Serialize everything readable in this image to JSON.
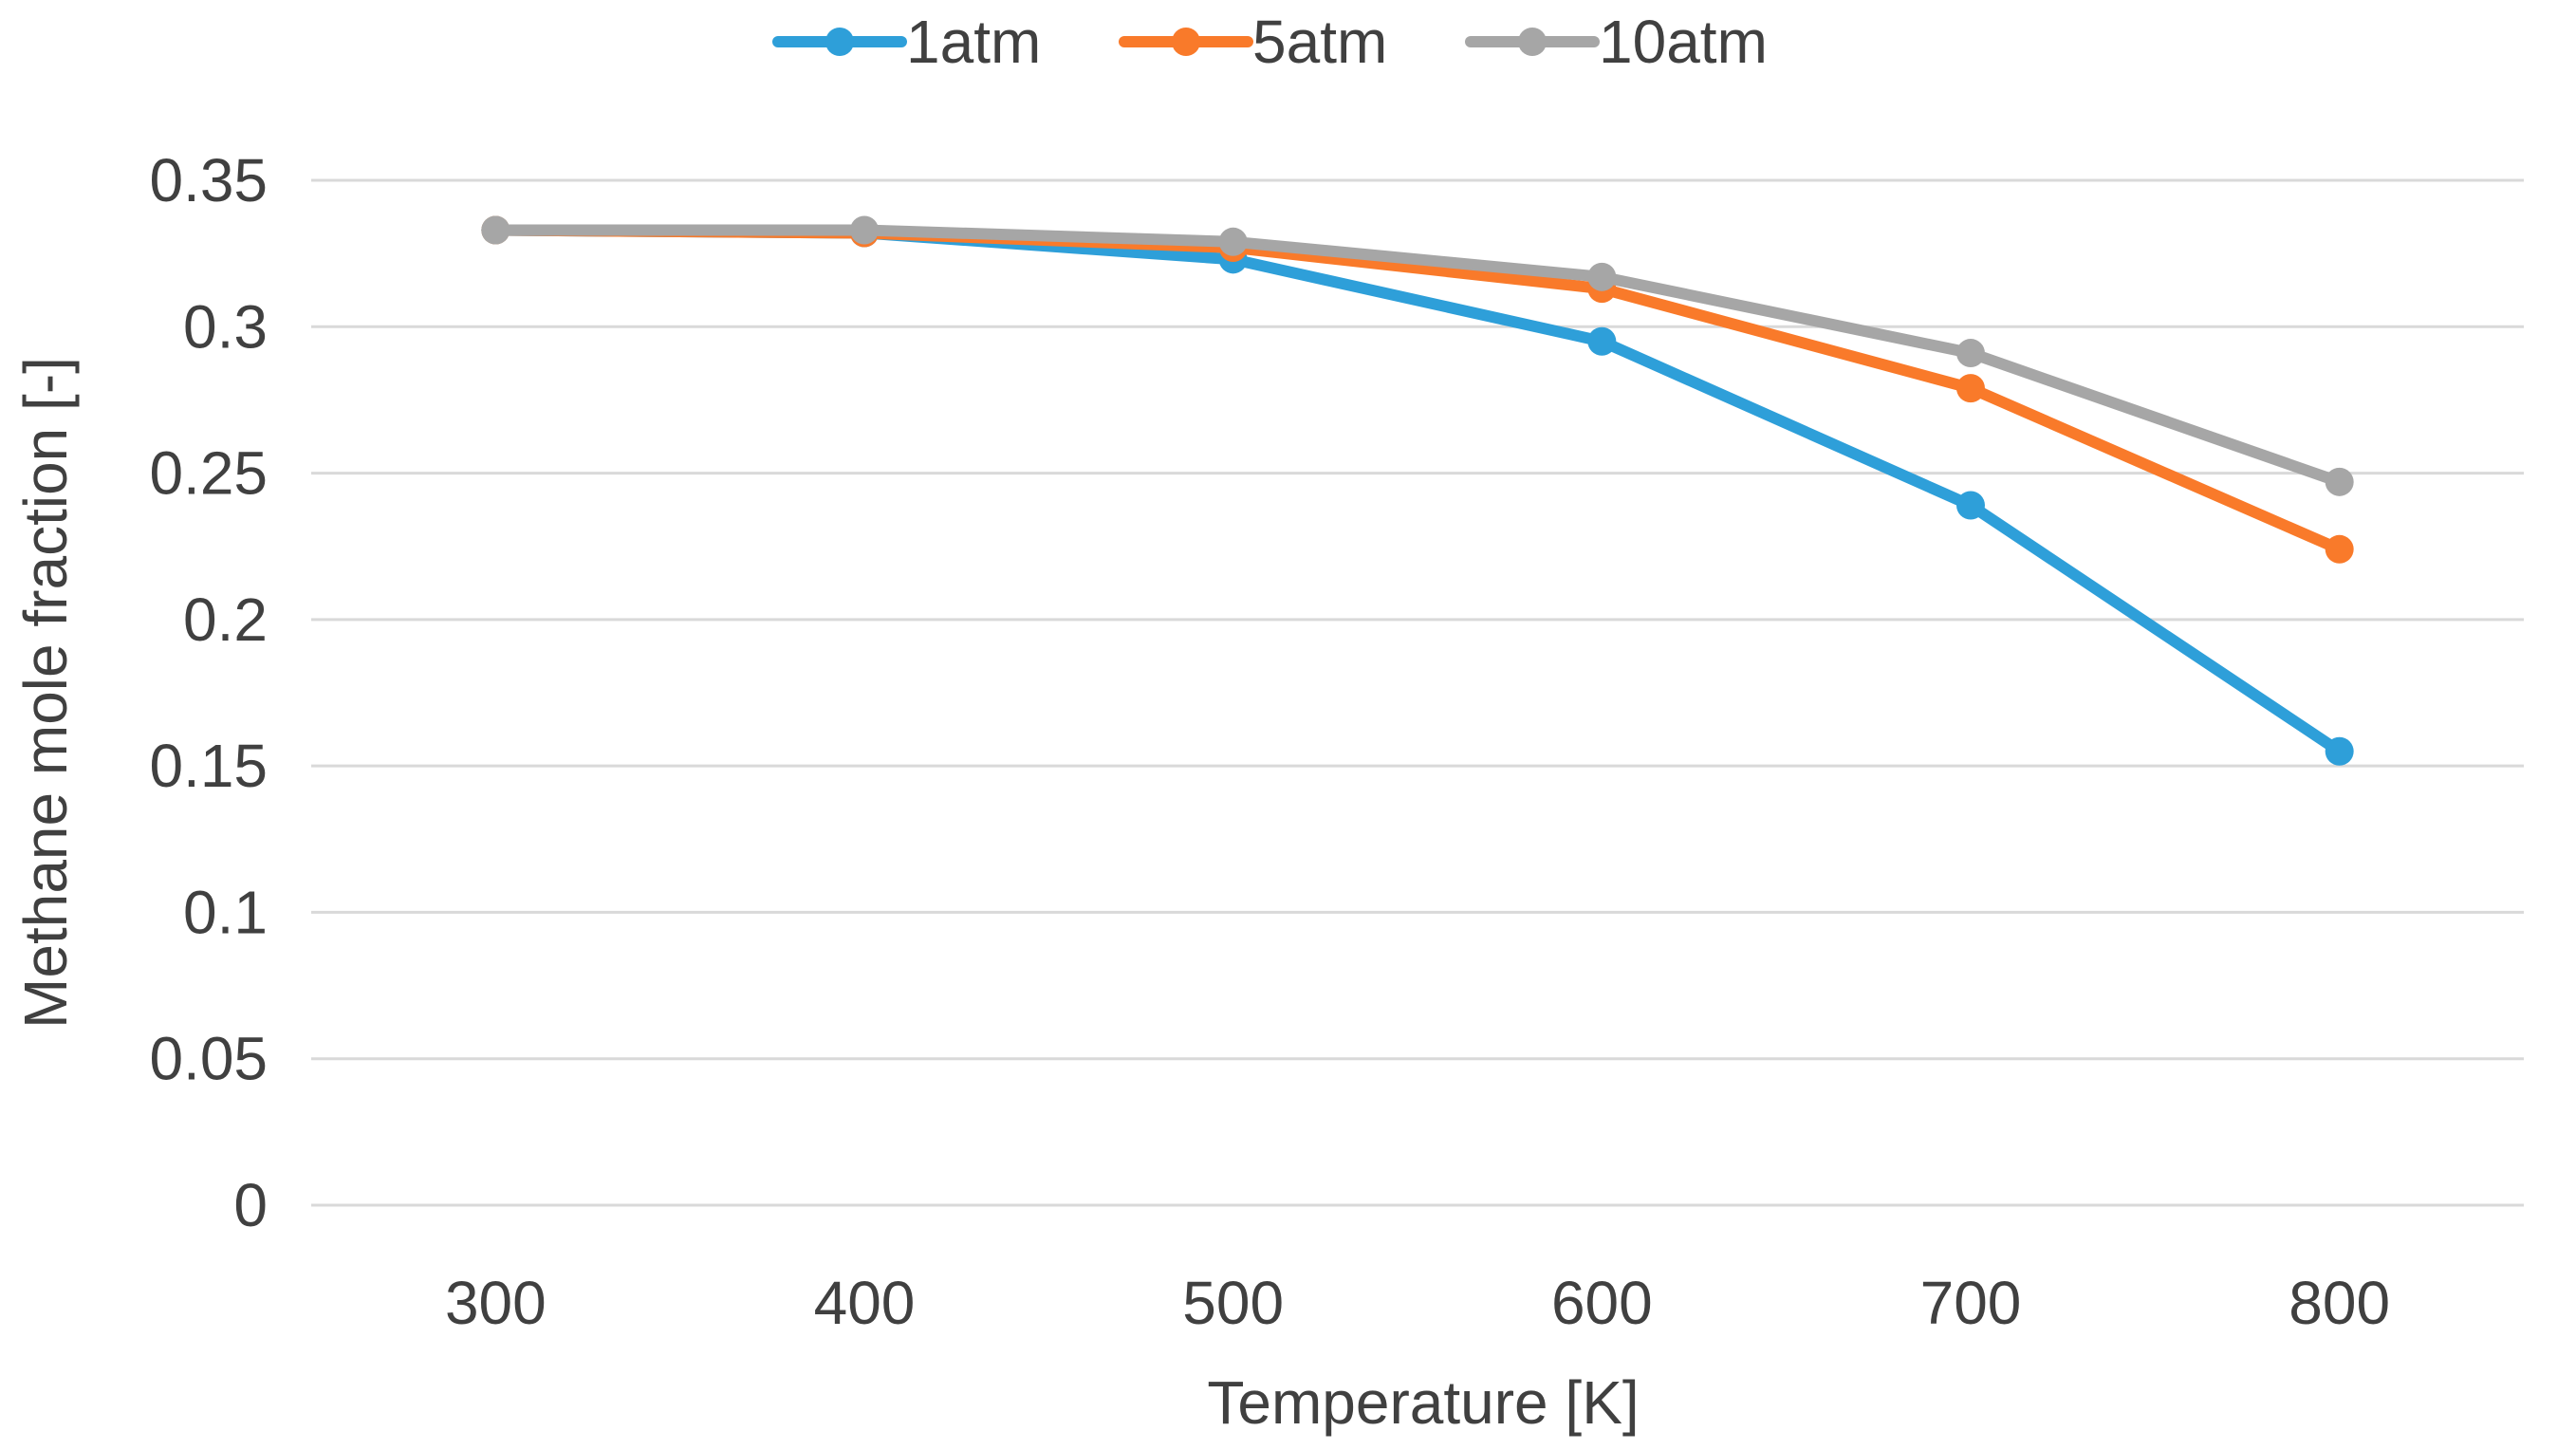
{
  "chart_data": {
    "type": "line",
    "title": "",
    "xlabel": "Temperature [K]",
    "ylabel": "Methane mole fraction [-]",
    "categories": [
      "300",
      "400",
      "500",
      "600",
      "700",
      "800"
    ],
    "x": [
      300,
      400,
      500,
      600,
      700,
      800
    ],
    "ylim": [
      0,
      0.35
    ],
    "yticks": [
      0,
      0.05,
      0.1,
      0.15,
      0.2,
      0.25,
      0.3,
      0.35
    ],
    "ytick_labels": [
      "0",
      "0.05",
      "0.1",
      "0.15",
      "0.2",
      "0.25",
      "0.3",
      "0.35"
    ],
    "grid": true,
    "legend_position": "top-center",
    "series": [
      {
        "name": "1atm",
        "color": "#2e9fd9",
        "values": [
          0.333,
          0.332,
          0.323,
          0.295,
          0.239,
          0.155
        ]
      },
      {
        "name": "5atm",
        "color": "#f97a2a",
        "values": [
          0.333,
          0.332,
          0.327,
          0.313,
          0.279,
          0.224
        ]
      },
      {
        "name": "10atm",
        "color": "#a6a6a6",
        "values": [
          0.333,
          0.333,
          0.329,
          0.317,
          0.291,
          0.247
        ]
      }
    ]
  }
}
